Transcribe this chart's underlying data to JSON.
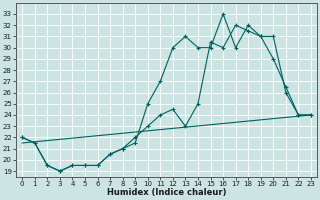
{
  "xlabel": "Humidex (Indice chaleur)",
  "xlim": [
    -0.5,
    23.5
  ],
  "ylim": [
    18.5,
    34.0
  ],
  "yticks": [
    19,
    20,
    21,
    22,
    23,
    24,
    25,
    26,
    27,
    28,
    29,
    30,
    31,
    32,
    33
  ],
  "xticks": [
    0,
    1,
    2,
    3,
    4,
    5,
    6,
    7,
    8,
    9,
    10,
    11,
    12,
    13,
    14,
    15,
    16,
    17,
    18,
    19,
    20,
    21,
    22,
    23
  ],
  "bg_color": "#cce5e3",
  "grid_color": "#ffffff",
  "line_color": "#006060",
  "line1_x": [
    0,
    1,
    2,
    3,
    4,
    5,
    6,
    7,
    8,
    9,
    10,
    11,
    12,
    13,
    14,
    15,
    16,
    17,
    18,
    19,
    20,
    21,
    22,
    23
  ],
  "line1_y": [
    22,
    21.5,
    19.5,
    19,
    19.5,
    19.5,
    19.5,
    20.5,
    21.0,
    21.5,
    25,
    27,
    30,
    31,
    30,
    30,
    33,
    30,
    32,
    31,
    29,
    26.5,
    24,
    24
  ],
  "line2_x": [
    0,
    1,
    2,
    3,
    4,
    5,
    6,
    7,
    8,
    9,
    10,
    11,
    12,
    13,
    14,
    15,
    16,
    17,
    18,
    19,
    20,
    21,
    22,
    23
  ],
  "line2_y": [
    22,
    21.5,
    19.5,
    19,
    19.5,
    19.5,
    19.5,
    20.5,
    21.0,
    22,
    23,
    24,
    24.5,
    23,
    25,
    30.5,
    30,
    32,
    31.5,
    31,
    31,
    26,
    24,
    24
  ],
  "line3_x": [
    0,
    23
  ],
  "line3_y": [
    21.5,
    24
  ],
  "xlabel_fontsize": 6,
  "tick_fontsize": 5
}
